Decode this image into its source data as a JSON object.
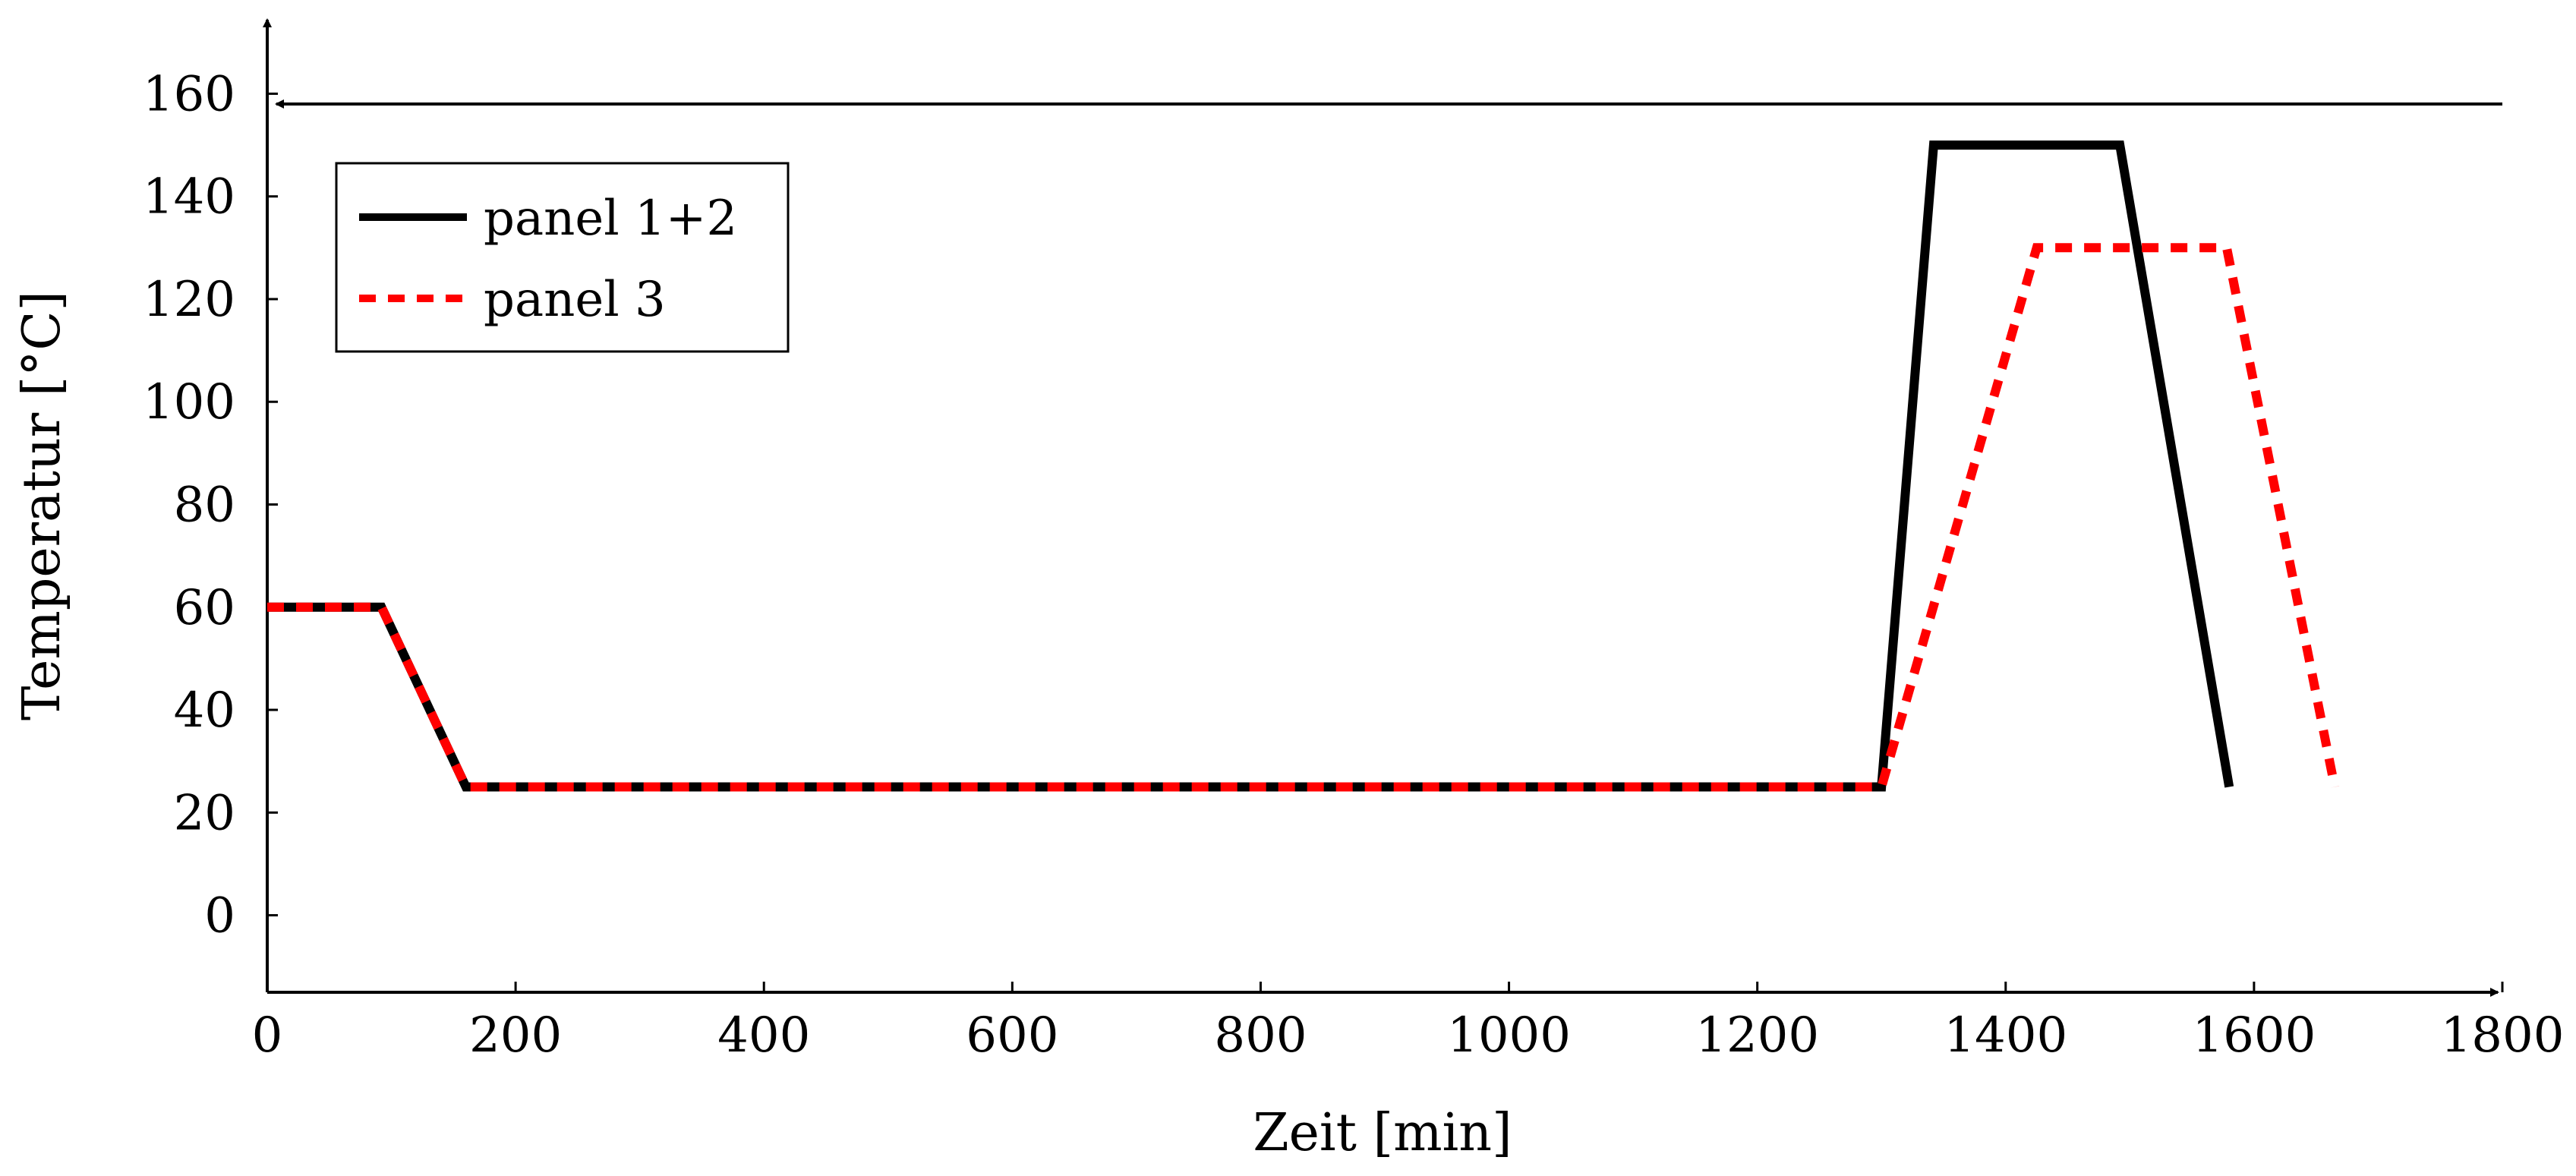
{
  "chart_data": {
    "type": "line",
    "xlabel": "Zeit [min]",
    "ylabel": "Temperatur [°C]",
    "xlim": [
      0,
      1800
    ],
    "ylim": [
      -15,
      175
    ],
    "xticks": [
      0,
      200,
      400,
      600,
      800,
      1000,
      1200,
      1400,
      1600,
      1800
    ],
    "yticks": [
      0,
      20,
      40,
      60,
      80,
      100,
      120,
      140,
      160
    ],
    "xtick_labels": [
      "0",
      "200",
      "400",
      "600",
      "800",
      "1000",
      "1200",
      "1400",
      "1600",
      "1800"
    ],
    "ytick_labels": [
      "0",
      "20",
      "40",
      "60",
      "80",
      "100",
      "120",
      "140",
      "160"
    ],
    "grid": false,
    "legend_position": "top-left",
    "annotations": [
      {
        "type": "arrow",
        "y": 158,
        "from_x": 1800,
        "to_x": 0
      }
    ],
    "series": [
      {
        "name": "panel 1+2",
        "color": "#000000",
        "style": "solid",
        "x": [
          0,
          92,
          160,
          1300,
          1342,
          1492,
          1580
        ],
        "y": [
          60,
          60,
          25,
          25,
          150,
          150,
          25
        ]
      },
      {
        "name": "panel 3",
        "color": "#ff0000",
        "style": "dashed",
        "x": [
          0,
          92,
          160,
          1300,
          1425,
          1578,
          1665
        ],
        "y": [
          60,
          60,
          25,
          25,
          130,
          130,
          25
        ]
      }
    ]
  }
}
